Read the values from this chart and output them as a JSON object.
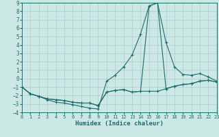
{
  "xlabel": "Humidex (Indice chaleur)",
  "bg_color": "#cce8e4",
  "line_color": "#1a6b6b",
  "grid_color": "#aacccc",
  "xlim": [
    0,
    23
  ],
  "ylim": [
    -4,
    9
  ],
  "xticks": [
    0,
    1,
    2,
    3,
    4,
    5,
    6,
    7,
    8,
    9,
    10,
    11,
    12,
    13,
    14,
    15,
    16,
    17,
    18,
    19,
    20,
    21,
    22,
    23
  ],
  "yticks": [
    -4,
    -3,
    -2,
    -1,
    0,
    1,
    2,
    3,
    4,
    5,
    6,
    7,
    8,
    9
  ],
  "line1_x": [
    0,
    1,
    2,
    3,
    4,
    5,
    6,
    7,
    8,
    9,
    10,
    11,
    12,
    13,
    14,
    15,
    16,
    17,
    18,
    19,
    20,
    21,
    22,
    23
  ],
  "line1_y": [
    -1.0,
    -1.8,
    -2.1,
    -2.5,
    -2.8,
    -2.9,
    -3.1,
    -3.3,
    -3.5,
    -3.6,
    -0.3,
    0.4,
    1.4,
    2.8,
    5.3,
    8.6,
    9.0,
    4.3,
    1.4,
    0.5,
    0.4,
    0.6,
    0.2,
    -0.3
  ],
  "line2_x": [
    0,
    1,
    2,
    3,
    4,
    5,
    6,
    7,
    8,
    9,
    10,
    11,
    12,
    13,
    14,
    15,
    16,
    17,
    18,
    19,
    20,
    21,
    22,
    23
  ],
  "line2_y": [
    -1.0,
    -1.8,
    -2.1,
    -2.4,
    -2.5,
    -2.6,
    -2.8,
    -2.9,
    -2.9,
    -3.2,
    -1.6,
    -1.4,
    -1.3,
    -1.6,
    -1.5,
    8.6,
    9.0,
    -1.2,
    -0.9,
    -0.7,
    -0.6,
    -0.3,
    -0.2,
    -0.4
  ],
  "line3_x": [
    0,
    1,
    2,
    3,
    4,
    5,
    6,
    7,
    8,
    9,
    10,
    11,
    12,
    13,
    14,
    15,
    16,
    17,
    18,
    19,
    20,
    21,
    22,
    23
  ],
  "line3_y": [
    -1.0,
    -1.8,
    -2.1,
    -2.4,
    -2.5,
    -2.6,
    -2.8,
    -2.9,
    -2.9,
    -3.2,
    -1.6,
    -1.4,
    -1.3,
    -1.6,
    -1.5,
    -1.5,
    -1.5,
    -1.2,
    -0.9,
    -0.7,
    -0.6,
    -0.3,
    -0.2,
    -0.4
  ]
}
